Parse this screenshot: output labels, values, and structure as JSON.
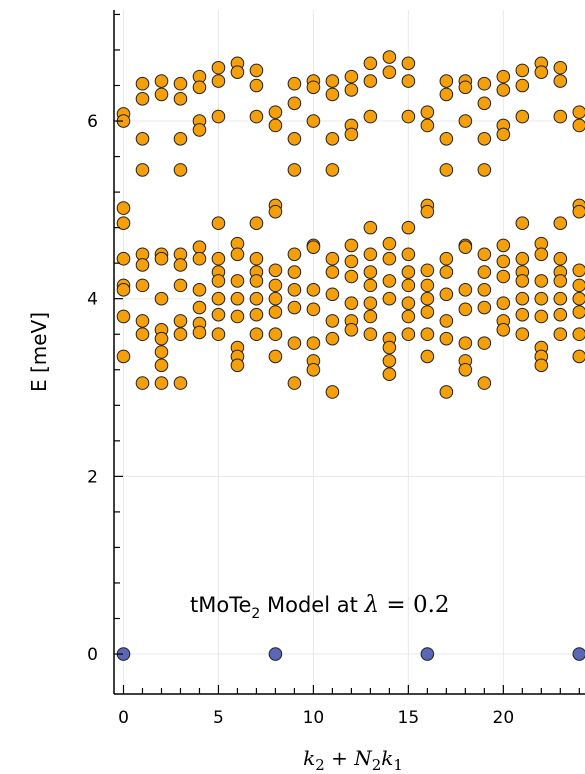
{
  "chart_data": {
    "type": "scatter",
    "title": "",
    "xlabel_parts": {
      "k2": "k",
      "k2_sub": "2",
      "plus": " + ",
      "N2": "N",
      "N2_sub": "2",
      "k1": "k",
      "k1_sub": "1"
    },
    "ylabel": "E [meV]",
    "annotation": {
      "prefix": "tMoTe",
      "sub": "2",
      "middle": " Model at ",
      "lambda": "λ",
      "equals": " = ",
      "value": "0.2"
    },
    "xlim": [
      -0.5,
      24.3
    ],
    "ylim": [
      -0.45,
      7.25
    ],
    "xticks": [
      0,
      5,
      10,
      15,
      20
    ],
    "yticks": [
      0,
      2,
      4,
      6
    ],
    "grid": true,
    "colors": {
      "ground": "#5a67b5",
      "excited": "#f5a00a",
      "edge": "#222222",
      "grid": "#e9e9e9"
    },
    "series": [
      {
        "color": "#5a67b5",
        "points": [
          [
            0,
            0.0
          ],
          [
            8,
            0.0
          ],
          [
            16,
            0.0
          ],
          [
            24,
            0.0
          ]
        ]
      },
      {
        "color": "#f5a00a",
        "points": [
          [
            0,
            6.08
          ],
          [
            0,
            6.0
          ],
          [
            0,
            5.02
          ],
          [
            0,
            4.85
          ],
          [
            0,
            4.45
          ],
          [
            0,
            4.15
          ],
          [
            0,
            4.1
          ],
          [
            0,
            3.8
          ],
          [
            0,
            3.35
          ],
          [
            1,
            6.42
          ],
          [
            1,
            6.25
          ],
          [
            1,
            5.8
          ],
          [
            1,
            5.45
          ],
          [
            1,
            4.5
          ],
          [
            1,
            4.38
          ],
          [
            1,
            4.15
          ],
          [
            1,
            3.75
          ],
          [
            1,
            3.6
          ],
          [
            1,
            3.05
          ],
          [
            2,
            6.45
          ],
          [
            2,
            6.3
          ],
          [
            2,
            4.5
          ],
          [
            2,
            4.45
          ],
          [
            2,
            4.0
          ],
          [
            2,
            3.65
          ],
          [
            2,
            3.55
          ],
          [
            2,
            3.4
          ],
          [
            2,
            3.25
          ],
          [
            2,
            3.05
          ],
          [
            3,
            6.42
          ],
          [
            3,
            6.25
          ],
          [
            3,
            5.8
          ],
          [
            3,
            5.45
          ],
          [
            3,
            4.5
          ],
          [
            3,
            4.38
          ],
          [
            3,
            4.15
          ],
          [
            3,
            3.75
          ],
          [
            3,
            3.6
          ],
          [
            3,
            3.05
          ],
          [
            4,
            6.5
          ],
          [
            4,
            6.38
          ],
          [
            4,
            6.0
          ],
          [
            4,
            5.9
          ],
          [
            4,
            4.58
          ],
          [
            4,
            4.45
          ],
          [
            4,
            4.1
          ],
          [
            4,
            3.9
          ],
          [
            4,
            3.72
          ],
          [
            4,
            3.62
          ],
          [
            5,
            6.6
          ],
          [
            5,
            6.45
          ],
          [
            5,
            6.05
          ],
          [
            5,
            4.85
          ],
          [
            5,
            4.45
          ],
          [
            5,
            4.3
          ],
          [
            5,
            4.2
          ],
          [
            5,
            4.0
          ],
          [
            5,
            3.82
          ],
          [
            5,
            3.6
          ],
          [
            6,
            6.65
          ],
          [
            6,
            6.55
          ],
          [
            6,
            4.62
          ],
          [
            6,
            4.5
          ],
          [
            6,
            4.2
          ],
          [
            6,
            4.0
          ],
          [
            6,
            3.8
          ],
          [
            6,
            3.45
          ],
          [
            6,
            3.35
          ],
          [
            6,
            3.25
          ],
          [
            7,
            6.57
          ],
          [
            7,
            6.4
          ],
          [
            7,
            6.05
          ],
          [
            7,
            4.85
          ],
          [
            7,
            4.45
          ],
          [
            7,
            4.3
          ],
          [
            7,
            4.2
          ],
          [
            7,
            4.0
          ],
          [
            7,
            3.82
          ],
          [
            7,
            3.6
          ],
          [
            8,
            6.1
          ],
          [
            8,
            5.95
          ],
          [
            8,
            5.05
          ],
          [
            8,
            4.98
          ],
          [
            8,
            4.32
          ],
          [
            8,
            4.15
          ],
          [
            8,
            4.0
          ],
          [
            8,
            3.85
          ],
          [
            8,
            3.6
          ],
          [
            8,
            3.35
          ],
          [
            9,
            6.42
          ],
          [
            9,
            6.2
          ],
          [
            9,
            5.8
          ],
          [
            9,
            5.45
          ],
          [
            9,
            4.5
          ],
          [
            9,
            4.3
          ],
          [
            9,
            4.1
          ],
          [
            9,
            3.9
          ],
          [
            9,
            3.5
          ],
          [
            9,
            3.05
          ],
          [
            10,
            6.45
          ],
          [
            10,
            6.38
          ],
          [
            10,
            6.0
          ],
          [
            10,
            4.6
          ],
          [
            10,
            4.58
          ],
          [
            10,
            4.1
          ],
          [
            10,
            3.88
          ],
          [
            10,
            3.5
          ],
          [
            10,
            3.3
          ],
          [
            10,
            3.2
          ],
          [
            11,
            6.45
          ],
          [
            11,
            6.3
          ],
          [
            11,
            5.8
          ],
          [
            11,
            5.45
          ],
          [
            11,
            4.45
          ],
          [
            11,
            4.3
          ],
          [
            11,
            4.05
          ],
          [
            11,
            3.75
          ],
          [
            11,
            3.55
          ],
          [
            11,
            2.95
          ],
          [
            12,
            6.5
          ],
          [
            12,
            6.35
          ],
          [
            12,
            5.95
          ],
          [
            12,
            5.85
          ],
          [
            12,
            4.6
          ],
          [
            12,
            4.42
          ],
          [
            12,
            4.25
          ],
          [
            12,
            3.95
          ],
          [
            12,
            3.75
          ],
          [
            12,
            3.65
          ],
          [
            13,
            6.65
          ],
          [
            13,
            6.45
          ],
          [
            13,
            6.05
          ],
          [
            13,
            4.8
          ],
          [
            13,
            4.5
          ],
          [
            13,
            4.3
          ],
          [
            13,
            4.15
          ],
          [
            13,
            3.95
          ],
          [
            13,
            3.8
          ],
          [
            13,
            3.6
          ],
          [
            14,
            6.72
          ],
          [
            14,
            6.55
          ],
          [
            14,
            4.62
          ],
          [
            14,
            4.45
          ],
          [
            14,
            4.2
          ],
          [
            14,
            4.0
          ],
          [
            14,
            3.55
          ],
          [
            14,
            3.45
          ],
          [
            14,
            3.3
          ],
          [
            14,
            3.15
          ],
          [
            15,
            6.65
          ],
          [
            15,
            6.45
          ],
          [
            15,
            6.05
          ],
          [
            15,
            4.8
          ],
          [
            15,
            4.5
          ],
          [
            15,
            4.3
          ],
          [
            15,
            4.15
          ],
          [
            15,
            3.95
          ],
          [
            15,
            3.8
          ],
          [
            15,
            3.6
          ],
          [
            16,
            6.1
          ],
          [
            16,
            5.95
          ],
          [
            16,
            5.05
          ],
          [
            16,
            4.98
          ],
          [
            16,
            4.32
          ],
          [
            16,
            4.15
          ],
          [
            16,
            4.0
          ],
          [
            16,
            3.85
          ],
          [
            16,
            3.6
          ],
          [
            16,
            3.35
          ],
          [
            17,
            6.45
          ],
          [
            17,
            6.3
          ],
          [
            17,
            5.8
          ],
          [
            17,
            5.45
          ],
          [
            17,
            4.45
          ],
          [
            17,
            4.3
          ],
          [
            17,
            4.05
          ],
          [
            17,
            3.75
          ],
          [
            17,
            3.55
          ],
          [
            17,
            2.95
          ],
          [
            18,
            6.45
          ],
          [
            18,
            6.38
          ],
          [
            18,
            6.0
          ],
          [
            18,
            4.6
          ],
          [
            18,
            4.58
          ],
          [
            18,
            4.1
          ],
          [
            18,
            3.88
          ],
          [
            18,
            3.5
          ],
          [
            18,
            3.3
          ],
          [
            18,
            3.2
          ],
          [
            19,
            6.42
          ],
          [
            19,
            6.2
          ],
          [
            19,
            5.8
          ],
          [
            19,
            5.45
          ],
          [
            19,
            4.5
          ],
          [
            19,
            4.3
          ],
          [
            19,
            4.1
          ],
          [
            19,
            3.9
          ],
          [
            19,
            3.5
          ],
          [
            19,
            3.05
          ],
          [
            20,
            6.5
          ],
          [
            20,
            6.35
          ],
          [
            20,
            5.95
          ],
          [
            20,
            5.85
          ],
          [
            20,
            4.6
          ],
          [
            20,
            4.42
          ],
          [
            20,
            4.25
          ],
          [
            20,
            3.95
          ],
          [
            20,
            3.75
          ],
          [
            20,
            3.65
          ],
          [
            21,
            6.57
          ],
          [
            21,
            6.4
          ],
          [
            21,
            6.05
          ],
          [
            21,
            4.85
          ],
          [
            21,
            4.45
          ],
          [
            21,
            4.3
          ],
          [
            21,
            4.2
          ],
          [
            21,
            4.0
          ],
          [
            21,
            3.82
          ],
          [
            21,
            3.6
          ],
          [
            22,
            6.65
          ],
          [
            22,
            6.55
          ],
          [
            22,
            4.62
          ],
          [
            22,
            4.5
          ],
          [
            22,
            4.2
          ],
          [
            22,
            4.0
          ],
          [
            22,
            3.8
          ],
          [
            22,
            3.45
          ],
          [
            22,
            3.35
          ],
          [
            22,
            3.25
          ],
          [
            23,
            6.6
          ],
          [
            23,
            6.45
          ],
          [
            23,
            6.05
          ],
          [
            23,
            4.85
          ],
          [
            23,
            4.45
          ],
          [
            23,
            4.3
          ],
          [
            23,
            4.2
          ],
          [
            23,
            4.0
          ],
          [
            23,
            3.82
          ],
          [
            23,
            3.6
          ],
          [
            24,
            6.1
          ],
          [
            24,
            5.95
          ],
          [
            24,
            5.05
          ],
          [
            24,
            4.98
          ],
          [
            24,
            4.32
          ],
          [
            24,
            4.15
          ],
          [
            24,
            4.0
          ],
          [
            24,
            3.85
          ],
          [
            24,
            3.6
          ],
          [
            24,
            3.35
          ]
        ]
      }
    ]
  }
}
